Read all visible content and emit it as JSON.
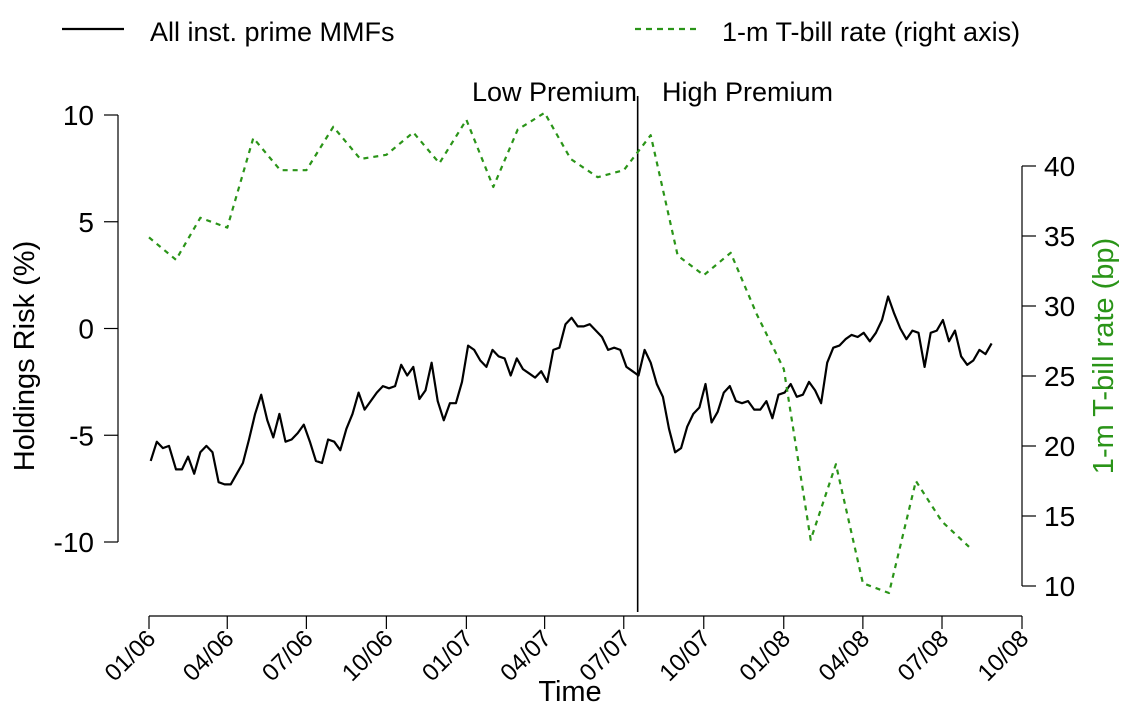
{
  "chart_data": {
    "type": "line",
    "title": "",
    "xlabel": "Time",
    "ylabel": "Holdings Risk (%)",
    "y2label": "1-m T-bill rate (bp)",
    "x_tick_labels": [
      "01/06",
      "04/06",
      "07/06",
      "10/06",
      "01/07",
      "04/07",
      "07/07",
      "10/07",
      "01/08",
      "04/08",
      "07/08",
      "10/08"
    ],
    "y_ticks": [
      "10",
      "5",
      "0",
      "-5",
      "-10"
    ],
    "y2_ticks": [
      "40",
      "35",
      "30",
      "25",
      "20",
      "15",
      "10"
    ],
    "ylim": [
      -12.8,
      10.5
    ],
    "y2lim": [
      9.8,
      46.0
    ],
    "x_range": [
      "2006-01",
      "2008-10"
    ],
    "grid": false,
    "legend_position": "top",
    "colors": {
      "holdings": "#000000",
      "tbill": "#2a9418"
    },
    "annotations": {
      "vline_date": "2007-07-17",
      "left_label": "Low Premium",
      "right_label": "High Premium"
    },
    "series": [
      {
        "name": "All inst. prime MMFs",
        "axis": "left",
        "style": "solid",
        "points": [
          [
            "2006-01-03",
            -6.2
          ],
          [
            "2006-01-10",
            -5.3
          ],
          [
            "2006-01-17",
            -5.6
          ],
          [
            "2006-01-24",
            -5.5
          ],
          [
            "2006-02-01",
            -6.6
          ],
          [
            "2006-02-08",
            -6.6
          ],
          [
            "2006-02-15",
            -6.0
          ],
          [
            "2006-02-22",
            -6.8
          ],
          [
            "2006-03-01",
            -5.8
          ],
          [
            "2006-03-08",
            -5.5
          ],
          [
            "2006-03-15",
            -5.8
          ],
          [
            "2006-03-22",
            -7.2
          ],
          [
            "2006-03-29",
            -7.3
          ],
          [
            "2006-04-05",
            -7.3
          ],
          [
            "2006-04-12",
            -6.8
          ],
          [
            "2006-04-19",
            -6.3
          ],
          [
            "2006-04-26",
            -5.2
          ],
          [
            "2006-05-03",
            -4.0
          ],
          [
            "2006-05-10",
            -3.1
          ],
          [
            "2006-05-17",
            -4.3
          ],
          [
            "2006-05-24",
            -5.1
          ],
          [
            "2006-05-31",
            -4.0
          ],
          [
            "2006-06-07",
            -5.3
          ],
          [
            "2006-06-14",
            -5.2
          ],
          [
            "2006-06-21",
            -4.9
          ],
          [
            "2006-06-28",
            -4.5
          ],
          [
            "2006-07-05",
            -5.3
          ],
          [
            "2006-07-12",
            -6.2
          ],
          [
            "2006-07-19",
            -6.3
          ],
          [
            "2006-07-26",
            -5.2
          ],
          [
            "2006-08-02",
            -5.3
          ],
          [
            "2006-08-09",
            -5.7
          ],
          [
            "2006-08-16",
            -4.7
          ],
          [
            "2006-08-23",
            -4.0
          ],
          [
            "2006-08-30",
            -3.0
          ],
          [
            "2006-09-06",
            -3.8
          ],
          [
            "2006-09-13",
            -3.4
          ],
          [
            "2006-09-20",
            -3.0
          ],
          [
            "2006-09-27",
            -2.7
          ],
          [
            "2006-10-04",
            -2.8
          ],
          [
            "2006-10-11",
            -2.7
          ],
          [
            "2006-10-18",
            -1.7
          ],
          [
            "2006-10-25",
            -2.2
          ],
          [
            "2006-11-01",
            -1.8
          ],
          [
            "2006-11-08",
            -3.3
          ],
          [
            "2006-11-15",
            -2.9
          ],
          [
            "2006-11-22",
            -1.6
          ],
          [
            "2006-11-29",
            -3.4
          ],
          [
            "2006-12-06",
            -4.3
          ],
          [
            "2006-12-13",
            -3.5
          ],
          [
            "2006-12-20",
            -3.5
          ],
          [
            "2006-12-27",
            -2.5
          ],
          [
            "2007-01-03",
            -0.8
          ],
          [
            "2007-01-10",
            -1.0
          ],
          [
            "2007-01-17",
            -1.5
          ],
          [
            "2007-01-24",
            -1.8
          ],
          [
            "2007-01-31",
            -1.0
          ],
          [
            "2007-02-07",
            -1.3
          ],
          [
            "2007-02-14",
            -1.4
          ],
          [
            "2007-02-21",
            -2.2
          ],
          [
            "2007-02-28",
            -1.4
          ],
          [
            "2007-03-07",
            -1.9
          ],
          [
            "2007-03-14",
            -2.1
          ],
          [
            "2007-03-21",
            -2.3
          ],
          [
            "2007-03-28",
            -2.0
          ],
          [
            "2007-04-04",
            -2.5
          ],
          [
            "2007-04-11",
            -1.0
          ],
          [
            "2007-04-18",
            -0.9
          ],
          [
            "2007-04-25",
            0.2
          ],
          [
            "2007-05-02",
            0.5
          ],
          [
            "2007-05-09",
            0.1
          ],
          [
            "2007-05-16",
            0.1
          ],
          [
            "2007-05-23",
            0.2
          ],
          [
            "2007-05-30",
            -0.1
          ],
          [
            "2007-06-06",
            -0.4
          ],
          [
            "2007-06-13",
            -1.0
          ],
          [
            "2007-06-20",
            -0.9
          ],
          [
            "2007-06-27",
            -1.0
          ],
          [
            "2007-07-04",
            -1.8
          ],
          [
            "2007-07-11",
            -2.0
          ],
          [
            "2007-07-18",
            -2.2
          ],
          [
            "2007-07-25",
            -1.0
          ],
          [
            "2007-08-01",
            -1.6
          ],
          [
            "2007-08-08",
            -2.6
          ],
          [
            "2007-08-15",
            -3.2
          ],
          [
            "2007-08-22",
            -4.7
          ],
          [
            "2007-08-29",
            -5.8
          ],
          [
            "2007-09-05",
            -5.6
          ],
          [
            "2007-09-12",
            -4.6
          ],
          [
            "2007-09-19",
            -4.0
          ],
          [
            "2007-09-26",
            -3.7
          ],
          [
            "2007-10-03",
            -2.6
          ],
          [
            "2007-10-10",
            -4.4
          ],
          [
            "2007-10-17",
            -3.9
          ],
          [
            "2007-10-24",
            -3.0
          ],
          [
            "2007-10-31",
            -2.7
          ],
          [
            "2007-11-07",
            -3.4
          ],
          [
            "2007-11-14",
            -3.5
          ],
          [
            "2007-11-21",
            -3.4
          ],
          [
            "2007-11-28",
            -3.8
          ],
          [
            "2007-12-05",
            -3.8
          ],
          [
            "2007-12-12",
            -3.4
          ],
          [
            "2007-12-19",
            -4.2
          ],
          [
            "2007-12-26",
            -3.1
          ],
          [
            "2008-01-02",
            -3.0
          ],
          [
            "2008-01-09",
            -2.6
          ],
          [
            "2008-01-16",
            -3.2
          ],
          [
            "2008-01-23",
            -3.1
          ],
          [
            "2008-01-30",
            -2.5
          ],
          [
            "2008-02-06",
            -2.9
          ],
          [
            "2008-02-13",
            -3.5
          ],
          [
            "2008-02-20",
            -1.6
          ],
          [
            "2008-02-27",
            -0.9
          ],
          [
            "2008-03-05",
            -0.8
          ],
          [
            "2008-03-12",
            -0.5
          ],
          [
            "2008-03-19",
            -0.3
          ],
          [
            "2008-03-26",
            -0.4
          ],
          [
            "2008-04-02",
            -0.2
          ],
          [
            "2008-04-09",
            -0.6
          ],
          [
            "2008-04-16",
            -0.2
          ],
          [
            "2008-04-23",
            0.4
          ],
          [
            "2008-04-30",
            1.5
          ],
          [
            "2008-05-07",
            0.7
          ],
          [
            "2008-05-14",
            0.0
          ],
          [
            "2008-05-21",
            -0.5
          ],
          [
            "2008-05-28",
            -0.1
          ],
          [
            "2008-06-04",
            -0.2
          ],
          [
            "2008-06-11",
            -1.8
          ],
          [
            "2008-06-18",
            -0.2
          ],
          [
            "2008-06-25",
            -0.1
          ],
          [
            "2008-07-02",
            0.4
          ],
          [
            "2008-07-09",
            -0.6
          ],
          [
            "2008-07-16",
            -0.1
          ],
          [
            "2008-07-23",
            -1.3
          ],
          [
            "2008-07-30",
            -1.7
          ],
          [
            "2008-08-06",
            -1.5
          ],
          [
            "2008-08-13",
            -1.0
          ],
          [
            "2008-08-20",
            -1.2
          ],
          [
            "2008-08-27",
            -0.7
          ]
        ]
      },
      {
        "name": "1-m T-bill rate (right axis)",
        "axis": "right",
        "style": "dashed",
        "points": [
          [
            "2006-01-01",
            34.9
          ],
          [
            "2006-02-01",
            33.3
          ],
          [
            "2006-03-01",
            36.3
          ],
          [
            "2006-04-01",
            35.6
          ],
          [
            "2006-05-01",
            42.0
          ],
          [
            "2006-06-01",
            39.7
          ],
          [
            "2006-07-01",
            39.7
          ],
          [
            "2006-08-01",
            42.8
          ],
          [
            "2006-09-01",
            40.5
          ],
          [
            "2006-10-01",
            40.8
          ],
          [
            "2006-11-01",
            42.4
          ],
          [
            "2006-12-01",
            40.2
          ],
          [
            "2007-01-01",
            43.3
          ],
          [
            "2007-02-01",
            38.5
          ],
          [
            "2007-03-01",
            42.6
          ],
          [
            "2007-04-01",
            43.8
          ],
          [
            "2007-05-01",
            40.5
          ],
          [
            "2007-06-01",
            39.2
          ],
          [
            "2007-07-01",
            39.7
          ],
          [
            "2007-08-01",
            42.2
          ],
          [
            "2007-09-01",
            33.6
          ],
          [
            "2007-10-01",
            32.2
          ],
          [
            "2007-11-01",
            33.8
          ],
          [
            "2007-12-01",
            29.4
          ],
          [
            "2008-01-01",
            25.5
          ],
          [
            "2008-02-01",
            13.3
          ],
          [
            "2008-03-01",
            18.7
          ],
          [
            "2008-04-01",
            10.2
          ],
          [
            "2008-05-01",
            9.5
          ],
          [
            "2008-06-01",
            17.5
          ],
          [
            "2008-07-01",
            14.6
          ],
          [
            "2008-08-01",
            12.8
          ]
        ]
      }
    ]
  }
}
